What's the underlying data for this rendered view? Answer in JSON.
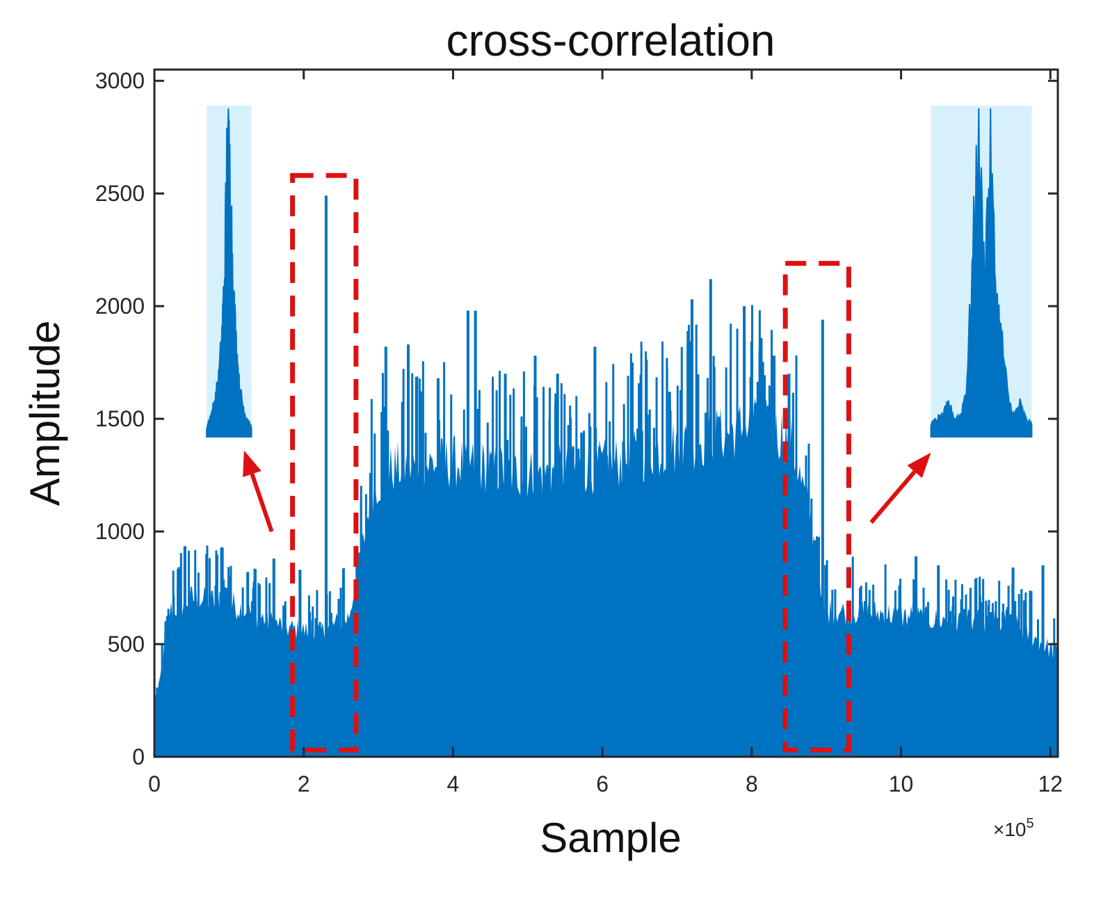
{
  "chart_data": {
    "type": "bar",
    "title": "cross-correlation",
    "xlabel": "Sample",
    "ylabel": "Amplitude",
    "x_multiplier_label": "×10",
    "x_multiplier_exponent": "5",
    "xlim": [
      0,
      12.1
    ],
    "ylim": [
      0,
      3050
    ],
    "xticks": [
      0,
      2,
      4,
      6,
      8,
      10,
      12
    ],
    "xtick_labels": [
      "0",
      "2",
      "4",
      "6",
      "8",
      "10",
      "12"
    ],
    "yticks": [
      0,
      500,
      1000,
      1500,
      2000,
      2500,
      3000
    ],
    "ytick_labels": [
      "0",
      "500",
      "1000",
      "1500",
      "2000",
      "2500",
      "3000"
    ],
    "series_color": "#0072c2",
    "envelope": [
      {
        "x": 0.0,
        "y": 180
      },
      {
        "x": 0.1,
        "y": 420
      },
      {
        "x": 0.2,
        "y": 680
      },
      {
        "x": 0.5,
        "y": 740
      },
      {
        "x": 1.0,
        "y": 720
      },
      {
        "x": 1.5,
        "y": 640
      },
      {
        "x": 1.8,
        "y": 600
      },
      {
        "x": 2.2,
        "y": 580
      },
      {
        "x": 2.6,
        "y": 650
      },
      {
        "x": 2.8,
        "y": 1000
      },
      {
        "x": 2.9,
        "y": 1250
      },
      {
        "x": 3.2,
        "y": 1350
      },
      {
        "x": 4.0,
        "y": 1380
      },
      {
        "x": 5.0,
        "y": 1320
      },
      {
        "x": 6.0,
        "y": 1360
      },
      {
        "x": 7.0,
        "y": 1450
      },
      {
        "x": 8.0,
        "y": 1550
      },
      {
        "x": 8.5,
        "y": 1500
      },
      {
        "x": 8.8,
        "y": 1100
      },
      {
        "x": 8.95,
        "y": 680
      },
      {
        "x": 9.5,
        "y": 680
      },
      {
        "x": 10.5,
        "y": 640
      },
      {
        "x": 11.5,
        "y": 620
      },
      {
        "x": 12.1,
        "y": 480
      }
    ],
    "spikes": [
      {
        "x": 0.7,
        "y": 900
      },
      {
        "x": 0.9,
        "y": 930
      },
      {
        "x": 1.25,
        "y": 820
      },
      {
        "x": 1.6,
        "y": 880
      },
      {
        "x": 1.95,
        "y": 830
      },
      {
        "x": 2.3,
        "y": 2490
      },
      {
        "x": 2.85,
        "y": 1060
      },
      {
        "x": 3.1,
        "y": 1820
      },
      {
        "x": 3.4,
        "y": 1830
      },
      {
        "x": 3.8,
        "y": 1680
      },
      {
        "x": 4.2,
        "y": 1980
      },
      {
        "x": 4.3,
        "y": 1980
      },
      {
        "x": 4.7,
        "y": 1700
      },
      {
        "x": 5.1,
        "y": 1780
      },
      {
        "x": 5.4,
        "y": 1700
      },
      {
        "x": 5.9,
        "y": 1820
      },
      {
        "x": 6.4,
        "y": 1750
      },
      {
        "x": 6.9,
        "y": 1620
      },
      {
        "x": 7.2,
        "y": 2030
      },
      {
        "x": 7.45,
        "y": 2120
      },
      {
        "x": 7.9,
        "y": 2000
      },
      {
        "x": 8.3,
        "y": 1780
      },
      {
        "x": 8.5,
        "y": 1700
      },
      {
        "x": 8.95,
        "y": 1940
      },
      {
        "x": 10.2,
        "y": 890
      },
      {
        "x": 10.5,
        "y": 850
      },
      {
        "x": 11.0,
        "y": 790
      },
      {
        "x": 11.5,
        "y": 840
      },
      {
        "x": 11.9,
        "y": 850
      }
    ],
    "annotations": {
      "dashed_boxes": [
        {
          "x0": 1.85,
          "x1": 2.7,
          "y0": 30,
          "y1": 2580
        },
        {
          "x0": 8.45,
          "x1": 9.3,
          "y0": 30,
          "y1": 2190
        }
      ],
      "box_color": "#dd1111",
      "inset_background": "#d6f1fb",
      "insets": [
        {
          "x0": 0.7,
          "x1": 1.3,
          "y0": 1420,
          "y1": 2890,
          "profile": [
            0.02,
            0.05,
            0.08,
            0.12,
            0.18,
            0.3,
            0.52,
            1.0,
            0.8,
            0.45,
            0.28,
            0.15,
            0.1,
            0.06,
            0.04,
            0.02
          ]
        },
        {
          "x0": 10.4,
          "x1": 11.75,
          "y0": 1420,
          "y1": 2890,
          "profile": [
            0.03,
            0.05,
            0.06,
            0.1,
            0.05,
            0.06,
            0.15,
            0.55,
            0.98,
            0.52,
            0.92,
            0.45,
            0.3,
            0.12,
            0.06,
            0.1,
            0.05,
            0.03
          ]
        }
      ],
      "arrows": [
        {
          "from": [
            1.57,
            1000
          ],
          "to": [
            1.2,
            1360
          ]
        },
        {
          "from": [
            9.6,
            1040
          ],
          "to": [
            10.4,
            1350
          ]
        }
      ]
    }
  }
}
